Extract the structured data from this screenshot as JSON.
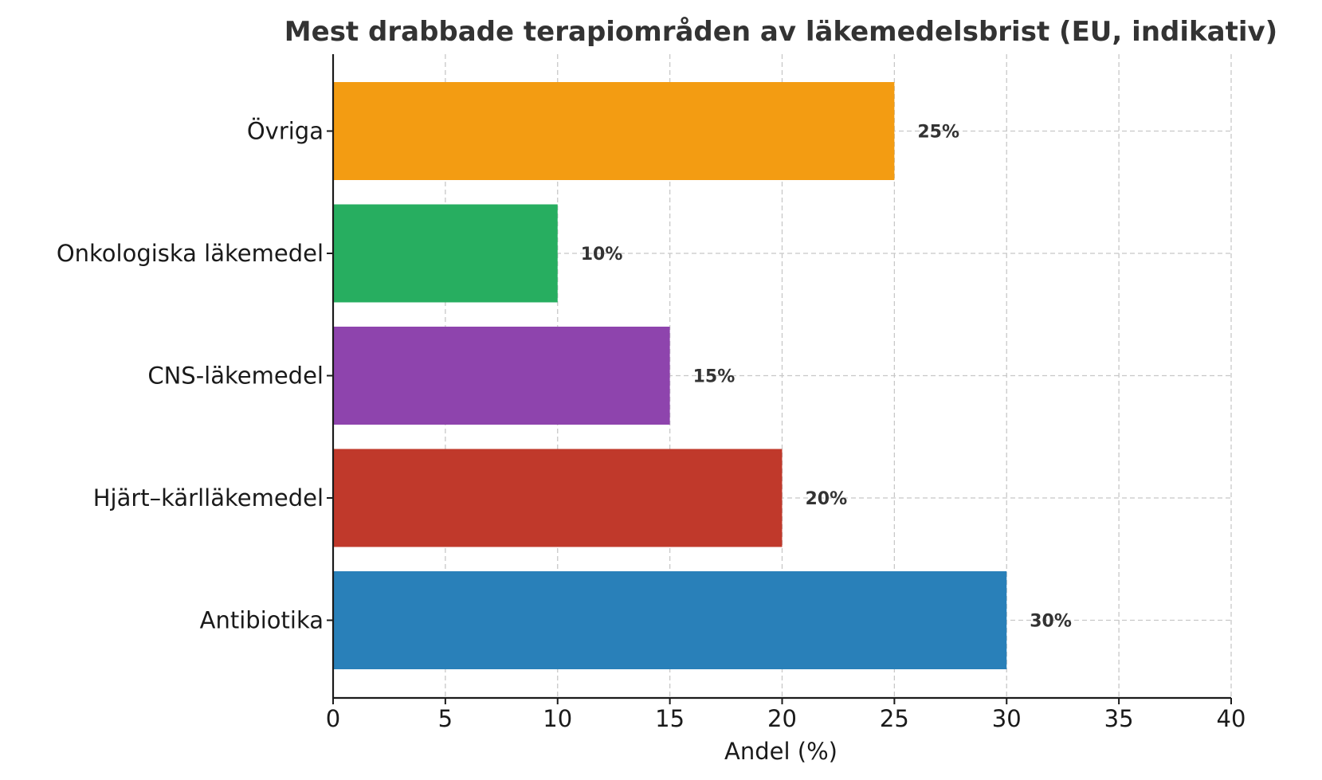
{
  "chart_data": {
    "type": "bar",
    "orientation": "horizontal",
    "title": "Mest drabbade terapiområden av läkemedelsbrist (EU, indikativ)",
    "xlabel": "Andel (%)",
    "ylabel": "",
    "xlim": [
      0,
      40
    ],
    "x_ticks": [
      "0",
      "5",
      "10",
      "15",
      "20",
      "25",
      "30",
      "35",
      "40"
    ],
    "grid": true,
    "grid_style": "dashed",
    "categories": [
      "Antibiotika",
      "Hjärt–kärlläkemedel",
      "CNS-läkemedel",
      "Onkologiska läkemedel",
      "Övriga"
    ],
    "values": [
      30,
      20,
      15,
      10,
      25
    ],
    "value_labels": [
      "30%",
      "20%",
      "15%",
      "10%",
      "25%"
    ],
    "colors": [
      "#2980b9",
      "#c0392b",
      "#8e44ad",
      "#27ae60",
      "#f39c12"
    ]
  }
}
